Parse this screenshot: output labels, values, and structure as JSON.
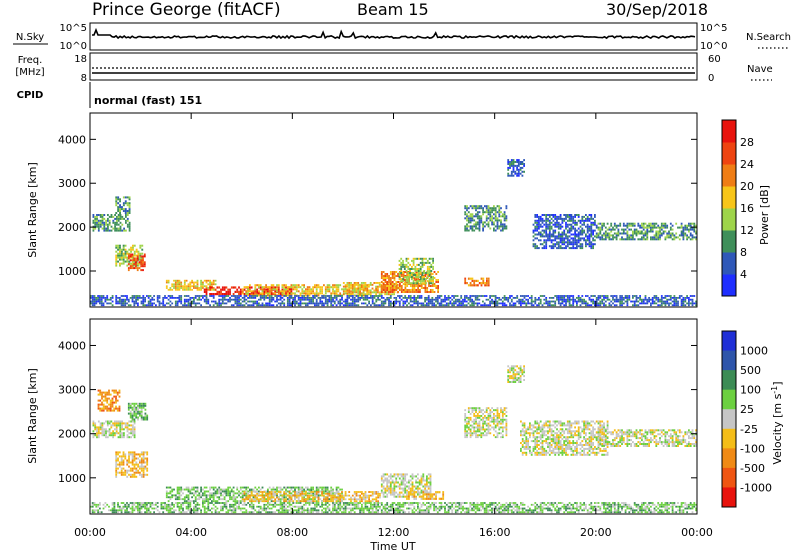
{
  "header": {
    "station": "Prince George (fitACF)",
    "beam": "Beam 15",
    "date": "30/Sep/2018"
  },
  "status_panels": {
    "nsky_label": "N.Sky",
    "nsearch_label": "N.Search",
    "count_ticks": [
      "10^5",
      "10^0"
    ],
    "freq_label_line1": "Freq.",
    "freq_label_line2": "[MHz]",
    "freq_ticks": [
      "18",
      "8"
    ],
    "nave_label": "Nave",
    "nave_ticks": [
      "60",
      "0"
    ],
    "cpid_label": "CPID",
    "cpid_text": "normal (fast) 151"
  },
  "axes": {
    "x_ticks": [
      "00:00",
      "04:00",
      "08:00",
      "12:00",
      "16:00",
      "20:00",
      "00:00"
    ],
    "x_label": "Time UT",
    "y_ticks": [
      "1000",
      "2000",
      "3000",
      "4000"
    ],
    "y_label": "Slant Range [km]"
  },
  "power_colorbar": {
    "label": "Power [dB]",
    "ticks": [
      "4",
      "8",
      "12",
      "16",
      "20",
      "24",
      "28"
    ],
    "colors": [
      "#1f2fff",
      "#2f58b8",
      "#3f8f5a",
      "#9ed44a",
      "#f7c519",
      "#ef7d15",
      "#ee4411",
      "#e8130d"
    ]
  },
  "velocity_colorbar": {
    "label": "Velocity [m s",
    "label_sup": "-1",
    "label_close": "]",
    "ticks": [
      "1000",
      "500",
      "100",
      "25",
      "-25",
      "-100",
      "-500",
      "-1000"
    ],
    "colors": [
      "#1f2fd6",
      "#2e55aa",
      "#3c8c55",
      "#6cd040",
      "#c6c6c6",
      "#f4bd18",
      "#f08a15",
      "#ef5512",
      "#e8130d"
    ]
  },
  "chart_data": {
    "type": "heatmap",
    "x_range_hours": [
      0,
      24
    ],
    "y_range_km": [
      180,
      4600
    ],
    "panels": [
      {
        "name": "power",
        "regions": [
          {
            "t": [
              0.1,
              1.6
            ],
            "r": [
              1900,
              2300
            ],
            "level": 2
          },
          {
            "t": [
              1.0,
              1.6
            ],
            "r": [
              2300,
              2700
            ],
            "level": 2
          },
          {
            "t": [
              1.0,
              2.1
            ],
            "r": [
              1100,
              1600
            ],
            "level": 3
          },
          {
            "t": [
              1.5,
              2.2
            ],
            "r": [
              1000,
              1400
            ],
            "level": 6
          },
          {
            "t": [
              3.0,
              5.0
            ],
            "r": [
              550,
              800
            ],
            "level": 4
          },
          {
            "t": [
              4.5,
              8.0
            ],
            "r": [
              450,
              650
            ],
            "level": 7
          },
          {
            "t": [
              6.0,
              11.0
            ],
            "r": [
              420,
              700
            ],
            "level": 4
          },
          {
            "t": [
              10.0,
              12.2
            ],
            "r": [
              450,
              750
            ],
            "level": 4
          },
          {
            "t": [
              11.5,
              13.8
            ],
            "r": [
              500,
              1000
            ],
            "level": 5
          },
          {
            "t": [
              12.2,
              13.6
            ],
            "r": [
              700,
              1300
            ],
            "level": 3
          },
          {
            "t": [
              14.8,
              15.8
            ],
            "r": [
              650,
              850
            ],
            "level": 5
          },
          {
            "t": [
              14.8,
              16.5
            ],
            "r": [
              1900,
              2500
            ],
            "level": 2
          },
          {
            "t": [
              16.5,
              17.2
            ],
            "r": [
              3150,
              3550
            ],
            "level": 1
          },
          {
            "t": [
              17.5,
              20.0
            ],
            "r": [
              1500,
              2300
            ],
            "level": 1
          },
          {
            "t": [
              20.0,
              24.0
            ],
            "r": [
              1700,
              2100
            ],
            "level": 2
          },
          {
            "t": [
              0.0,
              24.0
            ],
            "r": [
              200,
              450
            ],
            "level": 1
          }
        ]
      },
      {
        "name": "velocity",
        "regions": [
          {
            "t": [
              0.1,
              1.8
            ],
            "r": [
              1900,
              2300
            ],
            "level": 4
          },
          {
            "t": [
              0.3,
              1.2
            ],
            "r": [
              2500,
              3000
            ],
            "level": 6
          },
          {
            "t": [
              1.0,
              2.3
            ],
            "r": [
              1000,
              1600
            ],
            "level": 5
          },
          {
            "t": [
              1.5,
              2.3
            ],
            "r": [
              2300,
              2700
            ],
            "level": 3
          },
          {
            "t": [
              3.0,
              10.0
            ],
            "r": [
              450,
              800
            ],
            "level": 3
          },
          {
            "t": [
              6.0,
              11.5
            ],
            "r": [
              450,
              700
            ],
            "level": 5
          },
          {
            "t": [
              11.5,
              13.5
            ],
            "r": [
              550,
              1100
            ],
            "level": 4
          },
          {
            "t": [
              12.5,
              14.0
            ],
            "r": [
              500,
              700
            ],
            "level": 5
          },
          {
            "t": [
              14.8,
              16.5
            ],
            "r": [
              1900,
              2600
            ],
            "level": 4
          },
          {
            "t": [
              16.5,
              17.2
            ],
            "r": [
              3150,
              3550
            ],
            "level": 4
          },
          {
            "t": [
              17.0,
              20.5
            ],
            "r": [
              1500,
              2300
            ],
            "level": 4
          },
          {
            "t": [
              20.0,
              24.0
            ],
            "r": [
              1700,
              2100
            ],
            "level": 4
          },
          {
            "t": [
              0.0,
              24.0
            ],
            "r": [
              200,
              450
            ],
            "level": 3
          }
        ]
      }
    ]
  }
}
